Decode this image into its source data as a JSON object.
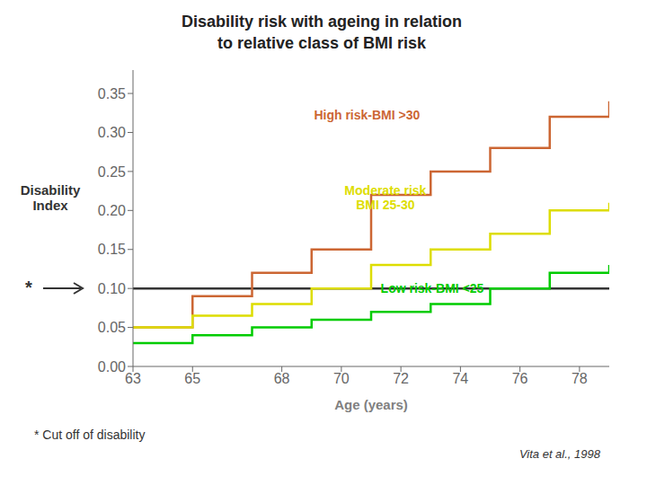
{
  "chart_data": {
    "type": "line",
    "line_style": "step",
    "title": "Disability risk with ageing in relation\nto relative class of BMI risk",
    "x_label": "Age (years)",
    "y_label": "Disability\nIndex",
    "xlim": [
      63,
      79
    ],
    "xticks": [
      63,
      65,
      68,
      70,
      72,
      74,
      76,
      78
    ],
    "ylim": [
      0.0,
      0.38
    ],
    "yticks": [
      {
        "value": 0.0,
        "label": "0.00"
      },
      0.05,
      {
        "value": 0.1,
        "label": "0.10"
      },
      0.15,
      {
        "value": 0.2,
        "label": "0.20"
      },
      0.25,
      {
        "value": 0.3,
        "label": "0.30"
      },
      0.35
    ],
    "cutoff_line": 0.1,
    "x": [
      63,
      64,
      65,
      66,
      67,
      68,
      69,
      70,
      71,
      72,
      73,
      74,
      75,
      76,
      77,
      78,
      79
    ],
    "series": [
      {
        "name": "High risk-BMI >30",
        "color": "#cc6633",
        "values": [
          0.05,
          0.05,
          0.09,
          0.09,
          0.12,
          0.12,
          0.15,
          0.15,
          0.22,
          0.22,
          0.25,
          0.25,
          0.28,
          0.28,
          0.32,
          0.32,
          0.34
        ]
      },
      {
        "name": "Moderate risk\nBMI 25-30",
        "color": "#dddd00",
        "values": [
          0.05,
          0.05,
          0.065,
          0.065,
          0.08,
          0.08,
          0.1,
          0.1,
          0.13,
          0.13,
          0.15,
          0.15,
          0.17,
          0.17,
          0.2,
          0.2,
          0.21
        ]
      },
      {
        "name": "Low risk-BMI <25",
        "color": "#00cc00",
        "values": [
          0.03,
          0.03,
          0.04,
          0.04,
          0.05,
          0.05,
          0.06,
          0.06,
          0.07,
          0.07,
          0.08,
          0.08,
          0.1,
          0.1,
          0.12,
          0.12,
          0.13
        ]
      }
    ],
    "annotations": [
      "*",
      "* Cut off of disability",
      "Vita et al., 1998"
    ]
  }
}
